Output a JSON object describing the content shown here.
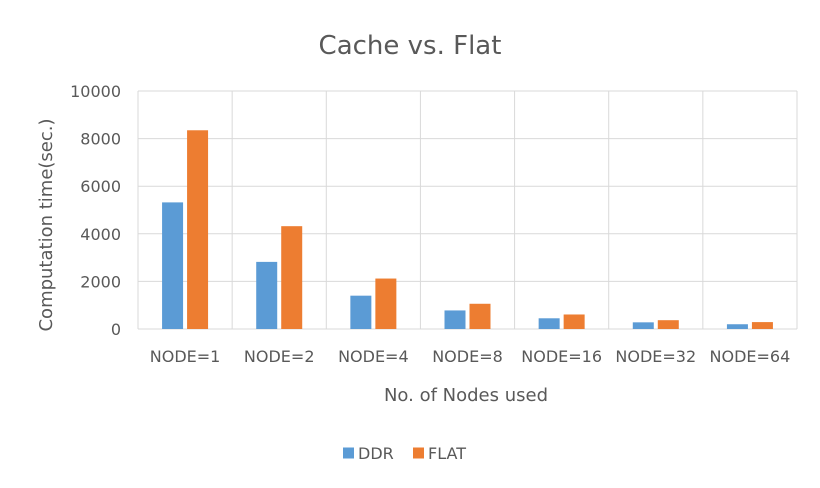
{
  "chart_data": {
    "type": "bar",
    "title": "Cache vs. Flat",
    "xlabel": "No. of Nodes used",
    "ylabel": "Computation time(sec.)",
    "categories": [
      "NODE=1",
      "NODE=2",
      "NODE=4",
      "NODE=8",
      "NODE=16",
      "NODE=32",
      "NODE=64"
    ],
    "series": [
      {
        "name": "DDR",
        "color": "#5b9bd5",
        "values": [
          5320,
          2820,
          1400,
          780,
          450,
          280,
          200
        ]
      },
      {
        "name": "FLAT",
        "color": "#ed7d31",
        "values": [
          8350,
          4320,
          2120,
          1060,
          610,
          370,
          290
        ]
      }
    ],
    "ylim": [
      0,
      10000
    ],
    "yticks": [
      0,
      2000,
      4000,
      6000,
      8000,
      10000
    ],
    "grid": true,
    "legend": "bottom"
  }
}
